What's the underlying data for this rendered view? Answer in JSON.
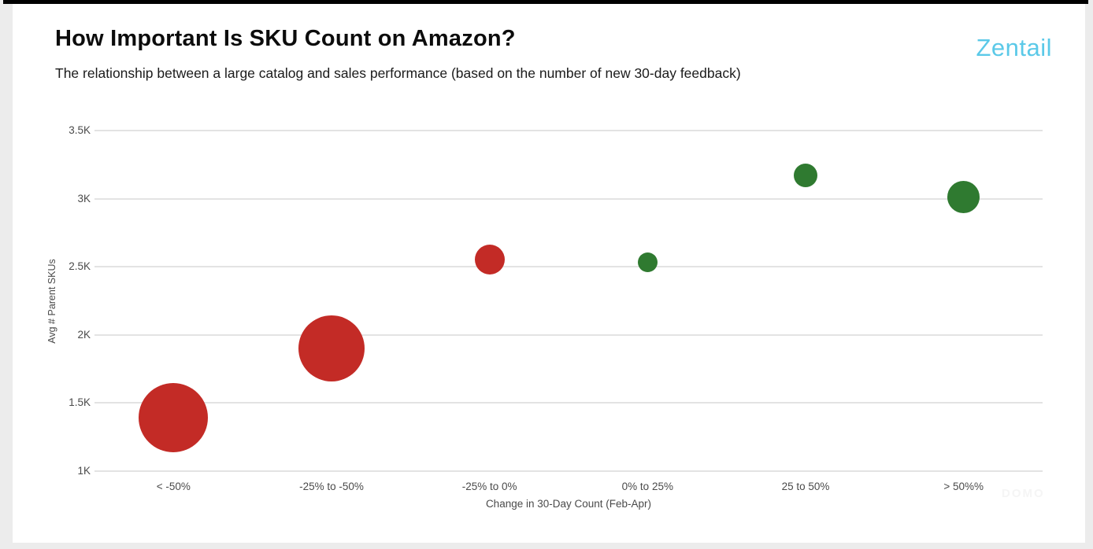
{
  "page": {
    "background_color": "#ececec",
    "top_bar_color": "#000000",
    "card_color": "#ffffff"
  },
  "header": {
    "title": "How Important Is SKU Count on Amazon?",
    "subtitle": "The relationship between a large catalog and sales performance (based on the number of new 30-day feedback)",
    "brand": "Zentail",
    "brand_color": "#5bc9e8"
  },
  "watermark": "DOMO",
  "chart_data": {
    "type": "scatter",
    "subtype": "bubble",
    "title": "",
    "xlabel": "Change in 30-Day Count (Feb-Apr)",
    "ylabel": "Avg # Parent SKUs",
    "categories": [
      "< -50%",
      "-25% to -50%",
      "-25% to 0%",
      "0% to 25%",
      "25 to 50%",
      "> 50%%"
    ],
    "y_ticks": [
      {
        "label": "1K",
        "value": 1000
      },
      {
        "label": "1.5K",
        "value": 1500
      },
      {
        "label": "2K",
        "value": 2000
      },
      {
        "label": "2.5K",
        "value": 2500
      },
      {
        "label": "3K",
        "value": 3000
      },
      {
        "label": "3.5K",
        "value": 3500
      }
    ],
    "ylim": [
      1000,
      3500
    ],
    "grid": true,
    "legend": "none",
    "gridline_color": "#e3e3e3",
    "points": [
      {
        "category": "< -50%",
        "avg_parent_skus": 1390,
        "bubble_radius_px": 44,
        "color": "#c32b26"
      },
      {
        "category": "-25% to -50%",
        "avg_parent_skus": 1900,
        "bubble_radius_px": 42,
        "color": "#c32b26"
      },
      {
        "category": "-25% to 0%",
        "avg_parent_skus": 2555,
        "bubble_radius_px": 19,
        "color": "#c32b26"
      },
      {
        "category": "0% to 25%",
        "avg_parent_skus": 2535,
        "bubble_radius_px": 12.5,
        "color": "#2f7a30"
      },
      {
        "category": "25 to 50%",
        "avg_parent_skus": 3170,
        "bubble_radius_px": 15,
        "color": "#2f7a30"
      },
      {
        "category": "> 50%%",
        "avg_parent_skus": 3010,
        "bubble_radius_px": 20.5,
        "color": "#2f7a30"
      }
    ],
    "series_colors": {
      "negative_change": "#c32b26",
      "positive_change": "#2f7a30"
    }
  }
}
